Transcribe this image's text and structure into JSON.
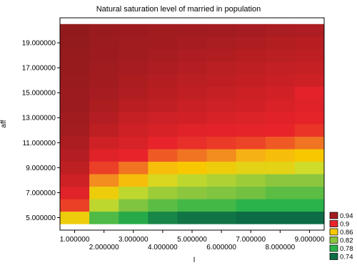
{
  "chart_data": {
    "type": "heatmap",
    "title": "Natural saturation level of married in population",
    "xlabel": "l",
    "ylabel": "aff",
    "x_edges": [
      0.5,
      1.5,
      2.5,
      3.5,
      4.5,
      5.5,
      6.5,
      7.5,
      8.5,
      9.5
    ],
    "xlim": [
      0.5,
      9.5
    ],
    "ylim": [
      4.0,
      21.0
    ],
    "x_ticks_row1": [
      "1.000000",
      "3.000000",
      "5.000000",
      "7.000000",
      "9.000000"
    ],
    "x_tick_values_row1": [
      1,
      3,
      5,
      7,
      9
    ],
    "x_ticks_row2": [
      "2.000000",
      "4.000000",
      "6.000000",
      "8.000000"
    ],
    "x_tick_values_row2": [
      2,
      4,
      6,
      8
    ],
    "y_ticks": [
      "5.000000",
      "7.000000",
      "9.000000",
      "11.000000",
      "13.000000",
      "15.000000",
      "17.000000",
      "19.000000"
    ],
    "y_tick_values": [
      5,
      7,
      9,
      11,
      13,
      15,
      17,
      19
    ],
    "rows": [
      {
        "y": 5,
        "values": [
          0.855,
          0.795,
          0.775,
          0.755,
          0.745,
          0.745,
          0.74,
          0.74,
          0.74
        ]
      },
      {
        "y": 6,
        "values": [
          0.895,
          0.835,
          0.815,
          0.8,
          0.79,
          0.79,
          0.78,
          0.78,
          0.78
        ]
      },
      {
        "y": 7,
        "values": [
          0.905,
          0.855,
          0.835,
          0.825,
          0.82,
          0.815,
          0.81,
          0.8,
          0.8
        ]
      },
      {
        "y": 8,
        "values": [
          0.915,
          0.88,
          0.865,
          0.845,
          0.835,
          0.83,
          0.825,
          0.82,
          0.82
        ]
      },
      {
        "y": 9,
        "values": [
          0.925,
          0.895,
          0.885,
          0.865,
          0.86,
          0.855,
          0.85,
          0.85,
          0.84
        ]
      },
      {
        "y": 10,
        "values": [
          0.93,
          0.905,
          0.9,
          0.89,
          0.885,
          0.88,
          0.87,
          0.865,
          0.86
        ]
      },
      {
        "y": 11,
        "values": [
          0.935,
          0.915,
          0.91,
          0.9,
          0.898,
          0.896,
          0.894,
          0.89,
          0.885
        ]
      },
      {
        "y": 12,
        "values": [
          0.94,
          0.925,
          0.915,
          0.91,
          0.905,
          0.903,
          0.902,
          0.9,
          0.897
        ]
      },
      {
        "y": 13,
        "values": [
          0.945,
          0.93,
          0.92,
          0.916,
          0.913,
          0.91,
          0.907,
          0.904,
          0.902
        ]
      },
      {
        "y": 14,
        "values": [
          0.95,
          0.935,
          0.928,
          0.923,
          0.918,
          0.916,
          0.913,
          0.909,
          0.905
        ]
      },
      {
        "y": 15,
        "values": [
          0.952,
          0.938,
          0.932,
          0.928,
          0.923,
          0.92,
          0.917,
          0.913,
          0.903
        ]
      },
      {
        "y": 16,
        "values": [
          0.955,
          0.942,
          0.935,
          0.93,
          0.927,
          0.924,
          0.921,
          0.918,
          0.915
        ]
      },
      {
        "y": 17,
        "values": [
          0.957,
          0.945,
          0.938,
          0.934,
          0.93,
          0.927,
          0.925,
          0.922,
          0.92
        ]
      },
      {
        "y": 18,
        "values": [
          0.96,
          0.948,
          0.941,
          0.937,
          0.934,
          0.932,
          0.929,
          0.927,
          0.925
        ]
      },
      {
        "y": 19,
        "values": [
          0.962,
          0.95,
          0.945,
          0.942,
          0.938,
          0.936,
          0.934,
          0.931,
          0.929
        ]
      },
      {
        "y": 20,
        "values": [
          0.964,
          0.953,
          0.948,
          0.945,
          0.942,
          0.94,
          0.938,
          0.936,
          0.934
        ]
      }
    ],
    "legend": [
      {
        "label": "0.94",
        "color": "#a31c1f"
      },
      {
        "label": "0.9",
        "color": "#e8242a"
      },
      {
        "label": "0.86",
        "color": "#f7c800"
      },
      {
        "label": "0.82",
        "color": "#8cc63e"
      },
      {
        "label": "0.78",
        "color": "#2ab34a"
      },
      {
        "label": "0.74",
        "color": "#0d6b45"
      }
    ],
    "color_stops": [
      {
        "v": 0.74,
        "color": "#0d6b45"
      },
      {
        "v": 0.78,
        "color": "#2ab34a"
      },
      {
        "v": 0.82,
        "color": "#8cc63e"
      },
      {
        "v": 0.84,
        "color": "#cfdc2a"
      },
      {
        "v": 0.86,
        "color": "#f7c800"
      },
      {
        "v": 0.875,
        "color": "#f5a71e"
      },
      {
        "v": 0.89,
        "color": "#ef5a24"
      },
      {
        "v": 0.9,
        "color": "#e8242a"
      },
      {
        "v": 0.94,
        "color": "#a31c1f"
      },
      {
        "v": 0.97,
        "color": "#8e1a1c"
      }
    ],
    "legend_placement": "right-bottom",
    "grid": false
  }
}
